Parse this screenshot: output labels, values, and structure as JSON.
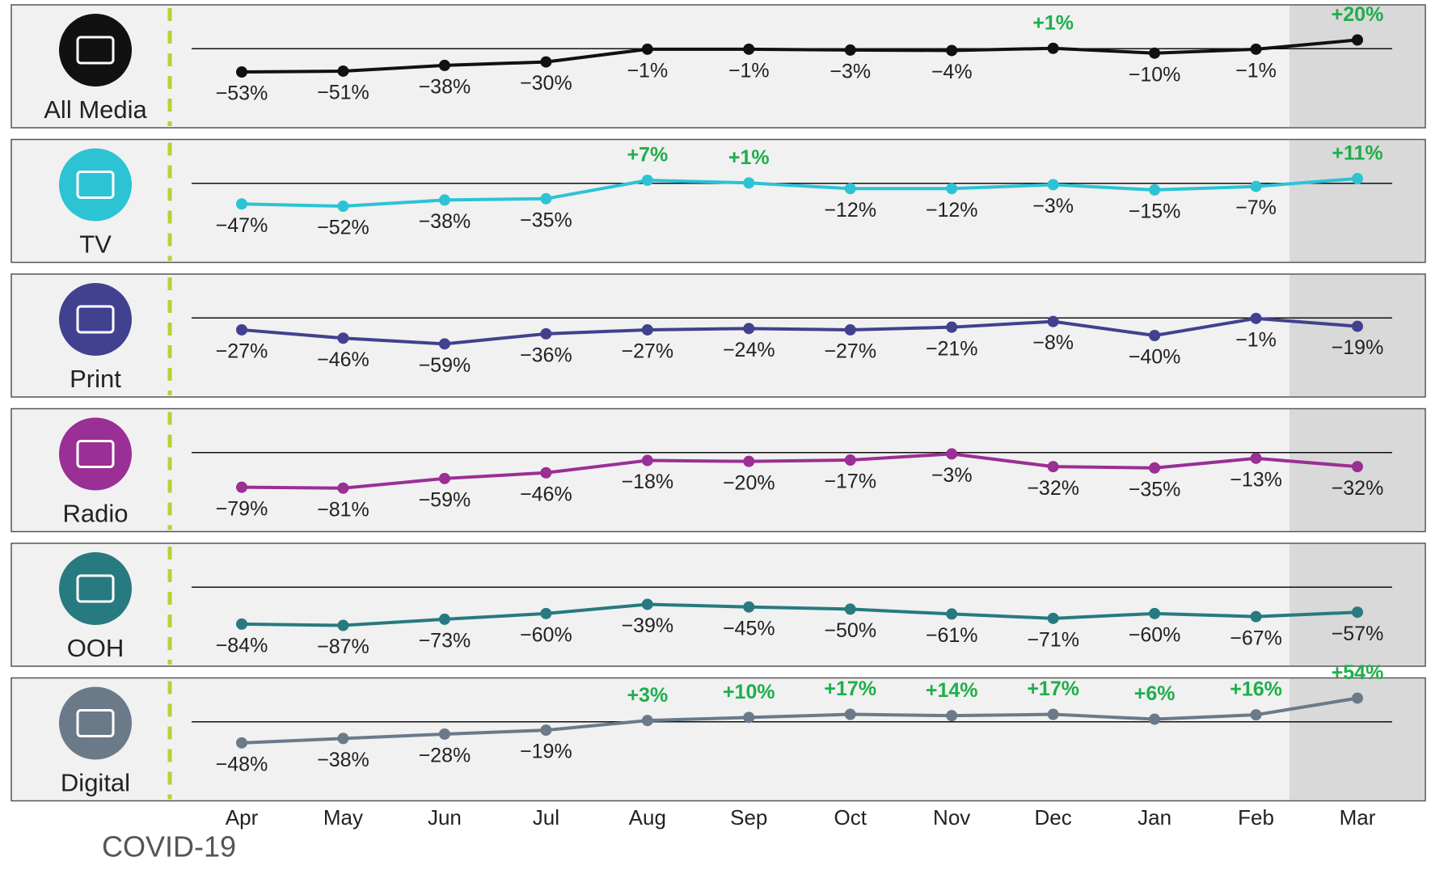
{
  "chart_data": {
    "type": "line",
    "categories": [
      "Apr",
      "May",
      "Jun",
      "Jul",
      "Aug",
      "Sep",
      "Oct",
      "Nov",
      "Dec",
      "Jan",
      "Feb",
      "Mar"
    ],
    "ylim": [
      -180,
      100
    ],
    "highlight_category": "Mar",
    "positive_label_color": "#1fae4b",
    "annotation": "COVID-19",
    "series": [
      {
        "name": "All Media",
        "color": "#111111",
        "values": [
          -53,
          -51,
          -38,
          -30,
          -1,
          -1,
          -3,
          -4,
          1,
          -10,
          -1,
          20
        ],
        "value_labels": [
          "−53%",
          "−51%",
          "−38%",
          "−30%",
          "−1%",
          "−1%",
          "−3%",
          "−4%",
          "+1%",
          "−10%",
          "−1%",
          "+20%"
        ]
      },
      {
        "name": "TV",
        "color": "#2cc3d5",
        "values": [
          -47,
          -52,
          -38,
          -35,
          7,
          1,
          -12,
          -12,
          -3,
          -15,
          -7,
          11
        ],
        "value_labels": [
          "−47%",
          "−52%",
          "−38%",
          "−35%",
          "+7%",
          "+1%",
          "−12%",
          "−12%",
          "−3%",
          "−15%",
          "−7%",
          "+11%"
        ]
      },
      {
        "name": "Print",
        "color": "#41418f",
        "values": [
          -27,
          -46,
          -59,
          -36,
          -27,
          -24,
          -27,
          -21,
          -8,
          -40,
          -1,
          -19
        ],
        "value_labels": [
          "−27%",
          "−46%",
          "−59%",
          "−36%",
          "−27%",
          "−24%",
          "−27%",
          "−21%",
          "−8%",
          "−40%",
          "−1%",
          "−19%"
        ]
      },
      {
        "name": "Radio",
        "color": "#9a2f95",
        "values": [
          -79,
          -81,
          -59,
          -46,
          -18,
          -20,
          -17,
          -3,
          -32,
          -35,
          -13,
          -32
        ],
        "value_labels": [
          "−79%",
          "−81%",
          "−59%",
          "−46%",
          "−18%",
          "−20%",
          "−17%",
          "−3%",
          "−32%",
          "−35%",
          "−13%",
          "−32%"
        ]
      },
      {
        "name": "OOH",
        "color": "#277a80",
        "values": [
          -84,
          -87,
          -73,
          -60,
          -39,
          -45,
          -50,
          -61,
          -71,
          -60,
          -67,
          -57
        ],
        "value_labels": [
          "−84%",
          "−87%",
          "−73%",
          "−60%",
          "−39%",
          "−45%",
          "−50%",
          "−61%",
          "−71%",
          "−60%",
          "−67%",
          "−57%"
        ]
      },
      {
        "name": "Digital",
        "color": "#6b7a89",
        "values": [
          -48,
          -38,
          -28,
          -19,
          3,
          10,
          17,
          14,
          17,
          6,
          16,
          54
        ],
        "value_labels": [
          "−48%",
          "−38%",
          "−28%",
          "−19%",
          "+3%",
          "+10%",
          "+17%",
          "+14%",
          "+17%",
          "+6%",
          "+16%",
          "+54%"
        ]
      }
    ]
  }
}
